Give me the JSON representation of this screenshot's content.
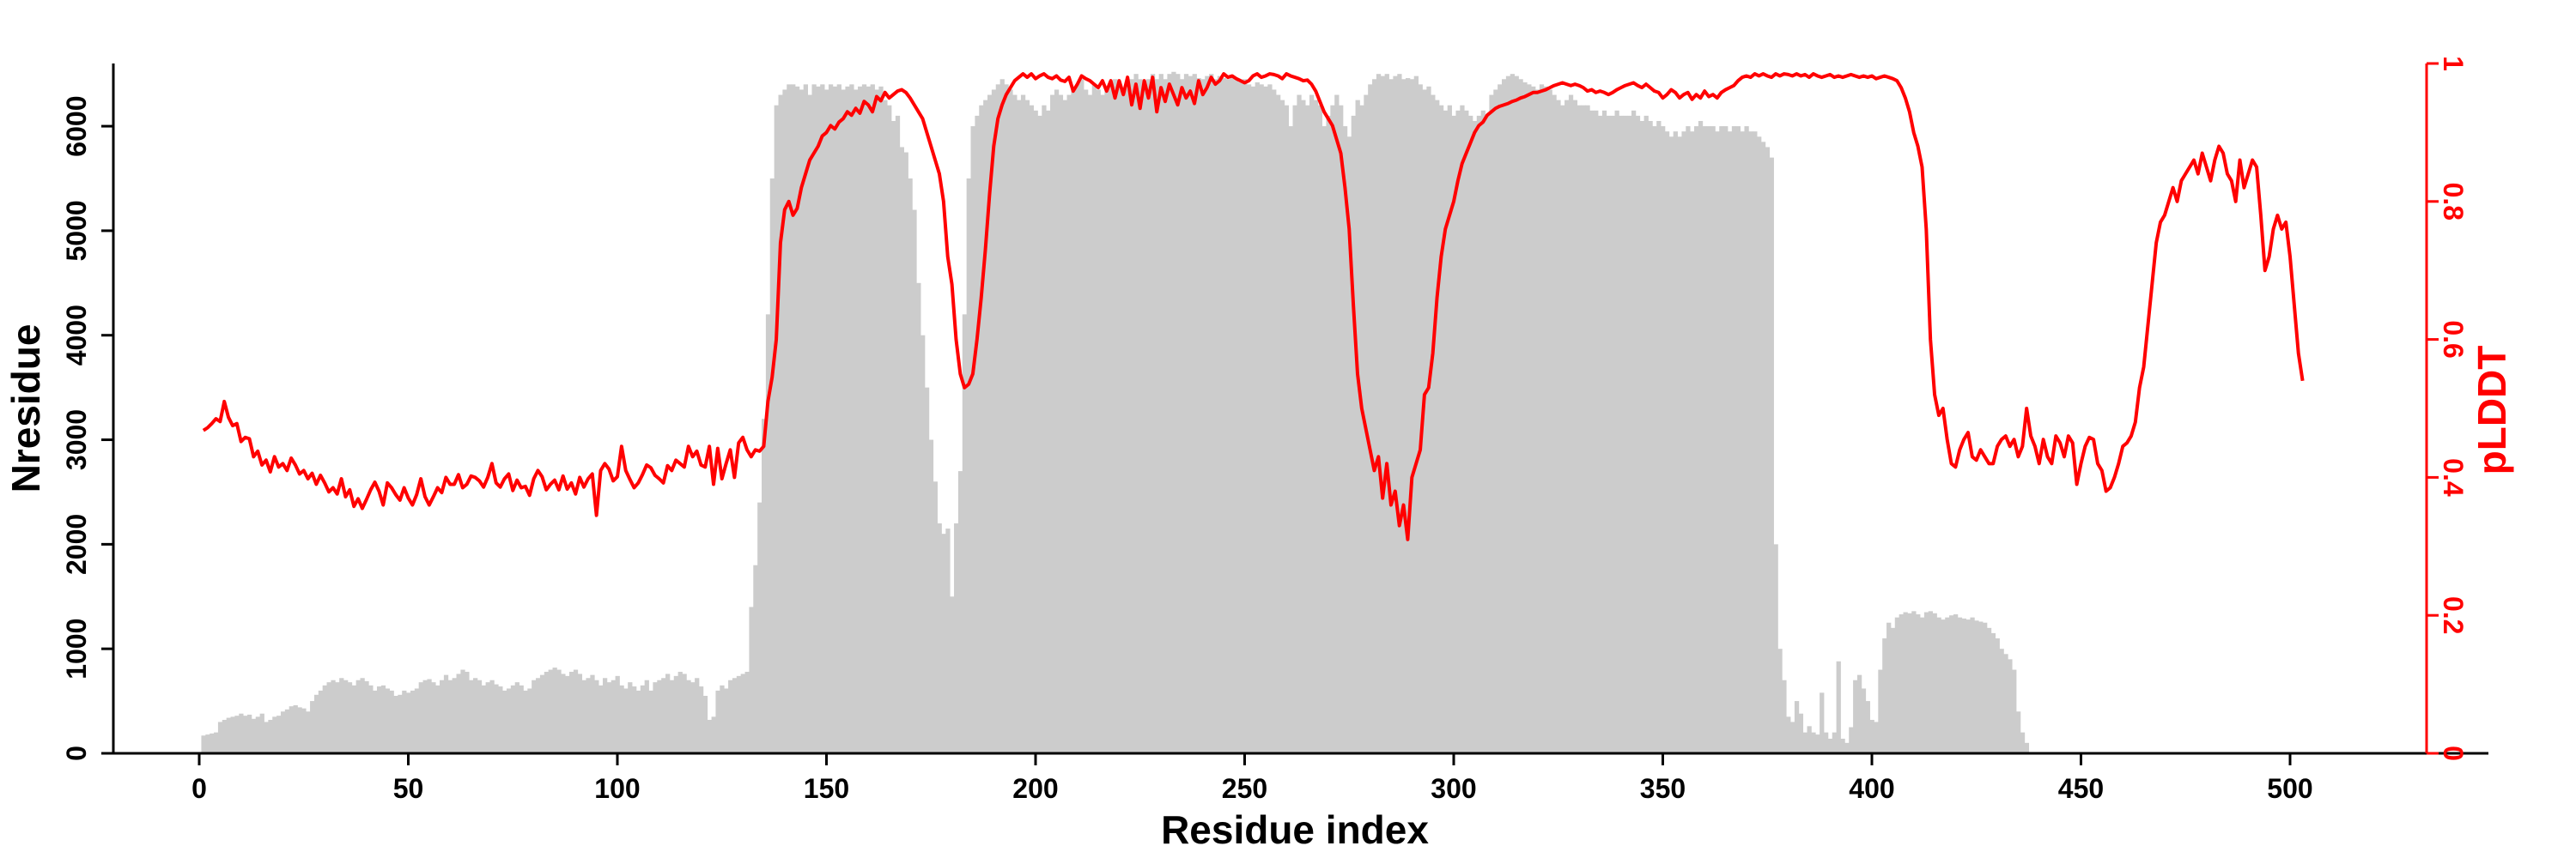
{
  "chart_data": {
    "type": "bar+line",
    "title": "",
    "xlabel": "Residue index",
    "ylabel": "Nresidue",
    "y2label": "pLDDT",
    "xlim": [
      -20,
      545
    ],
    "ylim": [
      0,
      6600
    ],
    "y2lim": [
      0,
      1
    ],
    "xticks": [
      0,
      50,
      100,
      150,
      200,
      250,
      300,
      350,
      400,
      450,
      500
    ],
    "yticks": [
      0,
      1000,
      2000,
      3000,
      4000,
      5000,
      6000
    ],
    "y2ticks": [
      0,
      0.2,
      0.4,
      0.6,
      0.8,
      1
    ],
    "colors": {
      "bars": "#cccccc",
      "plddt": "#ff0000",
      "axis": "#000000"
    },
    "series": [
      {
        "name": "Nresidue",
        "type": "bar",
        "x_start": 1,
        "x_step": 1,
        "values": [
          170,
          180,
          190,
          200,
          300,
          320,
          340,
          350,
          360,
          380,
          360,
          370,
          330,
          350,
          380,
          300,
          320,
          350,
          360,
          400,
          420,
          450,
          460,
          440,
          430,
          400,
          500,
          560,
          600,
          650,
          680,
          700,
          680,
          720,
          700,
          680,
          650,
          700,
          720,
          690,
          650,
          600,
          640,
          650,
          620,
          600,
          550,
          560,
          600,
          580,
          600,
          620,
          680,
          700,
          710,
          680,
          650,
          700,
          750,
          700,
          720,
          760,
          800,
          780,
          700,
          720,
          700,
          650,
          680,
          700,
          660,
          640,
          600,
          620,
          650,
          680,
          650,
          600,
          620,
          700,
          720,
          750,
          780,
          800,
          820,
          800,
          760,
          740,
          780,
          800,
          760,
          700,
          720,
          750,
          700,
          650,
          720,
          680,
          700,
          740,
          650,
          620,
          680,
          640,
          600,
          650,
          700,
          600,
          680,
          700,
          720,
          760,
          700,
          740,
          780,
          760,
          700,
          680,
          720,
          640,
          550,
          320,
          350,
          600,
          650,
          620,
          700,
          720,
          740,
          760,
          780,
          1400,
          1800,
          2400,
          3200,
          4200,
          5500,
          6200,
          6300,
          6350,
          6400,
          6400,
          6380,
          6350,
          6400,
          6300,
          6400,
          6380,
          6400,
          6350,
          6400,
          6380,
          6400,
          6350,
          6380,
          6400,
          6350,
          6380,
          6400,
          6380,
          6400,
          6350,
          6380,
          6250,
          6200,
          6050,
          6100,
          5800,
          5750,
          5500,
          5200,
          4500,
          4000,
          3500,
          3000,
          2600,
          2200,
          2100,
          2150,
          1500,
          2200,
          2700,
          4200,
          5500,
          6000,
          6100,
          6200,
          6250,
          6300,
          6350,
          6400,
          6450,
          6400,
          6350,
          6300,
          6250,
          6300,
          6250,
          6200,
          6150,
          6100,
          6200,
          6150,
          6300,
          6350,
          6300,
          6250,
          6300,
          6350,
          6400,
          6450,
          6350,
          6300,
          6400,
          6350,
          6300,
          6350,
          6400,
          6450,
          6400,
          6350,
          6400,
          6450,
          6500,
          6450,
          6400,
          6450,
          6500,
          6450,
          6500,
          6450,
          6500,
          6520,
          6500,
          6450,
          6500,
          6480,
          6500,
          6460,
          6450,
          6480,
          6500,
          6450,
          6480,
          6460,
          6450,
          6480,
          6440,
          6420,
          6450,
          6400,
          6380,
          6420,
          6400,
          6380,
          6400,
          6350,
          6300,
          6250,
          6200,
          6000,
          6200,
          6300,
          6250,
          6200,
          6300,
          6250,
          6200,
          6000,
          6100,
          6200,
          6300,
          6200,
          6000,
          5900,
          6100,
          6250,
          6200,
          6300,
          6400,
          6450,
          6500,
          6480,
          6500,
          6450,
          6480,
          6500,
          6450,
          6460,
          6450,
          6480,
          6400,
          6350,
          6380,
          6300,
          6250,
          6200,
          6150,
          6200,
          6100,
          6150,
          6200,
          6150,
          6100,
          6050,
          6100,
          6150,
          6100,
          6300,
          6350,
          6400,
          6450,
          6480,
          6500,
          6480,
          6450,
          6420,
          6400,
          6380,
          6350,
          6400,
          6380,
          6350,
          6300,
          6250,
          6200,
          6250,
          6300,
          6250,
          6200,
          6200,
          6200,
          6150,
          6150,
          6100,
          6150,
          6100,
          6100,
          6150,
          6100,
          6100,
          6100,
          6150,
          6100,
          6050,
          6100,
          6050,
          6000,
          6050,
          6000,
          5950,
          5900,
          5950,
          5900,
          5950,
          6000,
          5950,
          6000,
          6050,
          6000,
          6000,
          6000,
          5950,
          6000,
          6000,
          5950,
          6000,
          6000,
          5950,
          6000,
          5950,
          5950,
          5900,
          5850,
          5800,
          5700,
          2000,
          1000,
          700,
          350,
          300,
          500,
          380,
          200,
          260,
          200,
          180,
          580,
          200,
          140,
          200,
          880,
          140,
          100,
          250,
          700,
          750,
          620,
          500,
          320,
          300,
          800,
          1100,
          1250,
          1200,
          1300,
          1330,
          1350,
          1340,
          1360,
          1330,
          1300,
          1350,
          1360,
          1340,
          1300,
          1280,
          1300,
          1320,
          1330,
          1300,
          1290,
          1280,
          1300,
          1270,
          1260,
          1250,
          1200,
          1150,
          1100,
          1000,
          950,
          900,
          800,
          400,
          200,
          100
        ]
      },
      {
        "name": "pLDDT",
        "type": "line",
        "x_start": 1,
        "x_step": 1,
        "values": [
          0.468,
          0.472,
          0.478,
          0.485,
          0.481,
          0.51,
          0.487,
          0.475,
          0.478,
          0.452,
          0.458,
          0.456,
          0.43,
          0.438,
          0.418,
          0.425,
          0.408,
          0.43,
          0.415,
          0.42,
          0.41,
          0.428,
          0.418,
          0.405,
          0.41,
          0.398,
          0.406,
          0.39,
          0.403,
          0.392,
          0.379,
          0.385,
          0.376,
          0.398,
          0.372,
          0.382,
          0.358,
          0.369,
          0.355,
          0.368,
          0.382,
          0.393,
          0.38,
          0.36,
          0.392,
          0.385,
          0.375,
          0.367,
          0.385,
          0.37,
          0.36,
          0.375,
          0.398,
          0.372,
          0.36,
          0.372,
          0.385,
          0.378,
          0.4,
          0.39,
          0.39,
          0.404,
          0.385,
          0.39,
          0.402,
          0.4,
          0.395,
          0.386,
          0.4,
          0.42,
          0.392,
          0.386,
          0.398,
          0.405,
          0.381,
          0.396,
          0.385,
          0.387,
          0.374,
          0.398,
          0.41,
          0.401,
          0.382,
          0.39,
          0.396,
          0.382,
          0.402,
          0.383,
          0.392,
          0.376,
          0.4,
          0.386,
          0.398,
          0.405,
          0.345,
          0.41,
          0.42,
          0.412,
          0.395,
          0.401,
          0.445,
          0.41,
          0.397,
          0.385,
          0.392,
          0.404,
          0.418,
          0.414,
          0.403,
          0.398,
          0.392,
          0.417,
          0.41,
          0.425,
          0.42,
          0.415,
          0.445,
          0.43,
          0.438,
          0.418,
          0.415,
          0.445,
          0.39,
          0.442,
          0.398,
          0.42,
          0.44,
          0.4,
          0.45,
          0.458,
          0.44,
          0.43,
          0.44,
          0.438,
          0.445,
          0.51,
          0.545,
          0.6,
          0.74,
          0.788,
          0.8,
          0.78,
          0.79,
          0.82,
          0.84,
          0.86,
          0.87,
          0.88,
          0.895,
          0.9,
          0.91,
          0.905,
          0.915,
          0.92,
          0.93,
          0.925,
          0.935,
          0.928,
          0.945,
          0.94,
          0.93,
          0.952,
          0.946,
          0.958,
          0.95,
          0.955,
          0.96,
          0.962,
          0.958,
          0.95,
          0.94,
          0.93,
          0.92,
          0.9,
          0.88,
          0.86,
          0.84,
          0.8,
          0.72,
          0.68,
          0.6,
          0.55,
          0.53,
          0.535,
          0.55,
          0.6,
          0.66,
          0.73,
          0.81,
          0.88,
          0.92,
          0.94,
          0.955,
          0.965,
          0.975,
          0.98,
          0.985,
          0.98,
          0.985,
          0.978,
          0.982,
          0.985,
          0.98,
          0.978,
          0.982,
          0.976,
          0.974,
          0.98,
          0.96,
          0.97,
          0.982,
          0.978,
          0.975,
          0.97,
          0.965,
          0.975,
          0.96,
          0.975,
          0.95,
          0.975,
          0.955,
          0.98,
          0.94,
          0.97,
          0.935,
          0.975,
          0.95,
          0.98,
          0.93,
          0.965,
          0.945,
          0.97,
          0.955,
          0.94,
          0.965,
          0.95,
          0.96,
          0.942,
          0.975,
          0.955,
          0.965,
          0.98,
          0.97,
          0.975,
          0.985,
          0.98,
          0.982,
          0.978,
          0.975,
          0.972,
          0.975,
          0.982,
          0.985,
          0.98,
          0.982,
          0.985,
          0.984,
          0.982,
          0.978,
          0.985,
          0.982,
          0.98,
          0.978,
          0.975,
          0.976,
          0.97,
          0.96,
          0.945,
          0.93,
          0.92,
          0.91,
          0.89,
          0.87,
          0.82,
          0.76,
          0.65,
          0.55,
          0.5,
          0.47,
          0.44,
          0.41,
          0.43,
          0.37,
          0.42,
          0.36,
          0.38,
          0.33,
          0.36,
          0.31,
          0.4,
          0.42,
          0.44,
          0.52,
          0.53,
          0.58,
          0.66,
          0.72,
          0.76,
          0.78,
          0.8,
          0.83,
          0.855,
          0.87,
          0.885,
          0.9,
          0.91,
          0.915,
          0.925,
          0.93,
          0.935,
          0.938,
          0.94,
          0.942,
          0.945,
          0.947,
          0.95,
          0.952,
          0.955,
          0.958,
          0.958,
          0.96,
          0.962,
          0.965,
          0.968,
          0.97,
          0.972,
          0.97,
          0.968,
          0.97,
          0.968,
          0.965,
          0.96,
          0.962,
          0.958,
          0.96,
          0.958,
          0.955,
          0.958,
          0.962,
          0.965,
          0.968,
          0.97,
          0.972,
          0.968,
          0.965,
          0.97,
          0.965,
          0.96,
          0.958,
          0.95,
          0.955,
          0.962,
          0.958,
          0.95,
          0.955,
          0.958,
          0.948,
          0.955,
          0.95,
          0.96,
          0.952,
          0.955,
          0.95,
          0.958,
          0.962,
          0.965,
          0.968,
          0.975,
          0.98,
          0.982,
          0.98,
          0.985,
          0.982,
          0.985,
          0.982,
          0.98,
          0.985,
          0.982,
          0.985,
          0.984,
          0.982,
          0.985,
          0.982,
          0.984,
          0.98,
          0.985,
          0.982,
          0.98,
          0.982,
          0.984,
          0.98,
          0.982,
          0.98,
          0.982,
          0.984,
          0.982,
          0.98,
          0.982,
          0.98,
          0.982,
          0.978,
          0.98,
          0.982,
          0.98,
          0.978,
          0.975,
          0.965,
          0.95,
          0.93,
          0.9,
          0.88,
          0.85,
          0.76,
          0.6,
          0.52,
          0.49,
          0.5,
          0.455,
          0.42,
          0.415,
          0.44,
          0.455,
          0.465,
          0.43,
          0.425,
          0.44,
          0.43,
          0.42,
          0.42,
          0.445,
          0.455,
          0.46,
          0.445,
          0.455,
          0.43,
          0.445,
          0.5,
          0.46,
          0.445,
          0.42,
          0.455,
          0.43,
          0.42,
          0.46,
          0.45,
          0.43,
          0.46,
          0.45,
          0.39,
          0.42,
          0.445,
          0.458,
          0.455,
          0.42,
          0.41,
          0.38,
          0.385,
          0.4,
          0.42,
          0.445,
          0.45,
          0.46,
          0.48,
          0.53,
          0.56,
          0.62,
          0.68,
          0.74,
          0.77,
          0.78,
          0.8,
          0.82,
          0.8,
          0.83,
          0.84,
          0.85,
          0.86,
          0.84,
          0.87,
          0.85,
          0.83,
          0.86,
          0.88,
          0.87,
          0.84,
          0.83,
          0.8,
          0.86,
          0.82,
          0.84,
          0.86,
          0.85,
          0.78,
          0.7,
          0.72,
          0.76,
          0.78,
          0.76,
          0.77,
          0.72,
          0.65,
          0.58,
          0.54
        ]
      }
    ]
  }
}
